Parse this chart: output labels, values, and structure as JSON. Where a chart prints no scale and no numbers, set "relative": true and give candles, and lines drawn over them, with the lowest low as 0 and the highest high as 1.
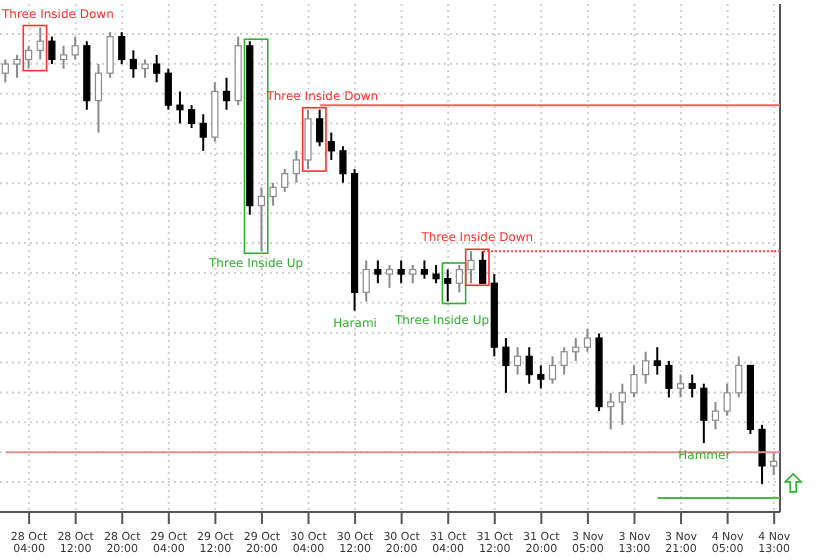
{
  "chart_data": {
    "type": "candlestick",
    "relative": true,
    "categories": [
      null,
      null,
      "28 Oct 04:00",
      null,
      null,
      null,
      "28 Oct 12:00",
      null,
      null,
      null,
      "28 Oct 20:00",
      null,
      null,
      null,
      "29 Oct 04:00",
      null,
      null,
      null,
      "29 Oct 12:00",
      null,
      null,
      null,
      "29 Oct 20:00",
      null,
      null,
      null,
      "30 Oct 04:00",
      null,
      null,
      null,
      "30 Oct 12:00",
      null,
      null,
      null,
      "30 Oct 20:00",
      null,
      null,
      null,
      "31 Oct 04:00",
      null,
      null,
      null,
      "31 Oct 12:00",
      null,
      null,
      null,
      "31 Oct 20:00",
      null,
      null,
      null,
      "3 Nov 05:00",
      null,
      null,
      null,
      "3 Nov 13:00",
      null,
      null,
      null,
      "3 Nov 21:00",
      null,
      null,
      null,
      "4 Nov 05:00",
      null,
      null,
      null,
      "4 Nov 13:00"
    ],
    "ohlc": [
      [
        0.9,
        0.93,
        0.88,
        0.92
      ],
      [
        0.92,
        0.94,
        0.89,
        0.93
      ],
      [
        0.93,
        0.96,
        0.91,
        0.95
      ],
      [
        0.95,
        1.0,
        0.93,
        0.97
      ],
      [
        0.97,
        0.98,
        0.92,
        0.93
      ],
      [
        0.93,
        0.96,
        0.91,
        0.94
      ],
      [
        0.94,
        0.98,
        0.93,
        0.96
      ],
      [
        0.96,
        0.97,
        0.82,
        0.84
      ],
      [
        0.84,
        0.92,
        0.77,
        0.9
      ],
      [
        0.9,
        0.99,
        0.89,
        0.98
      ],
      [
        0.98,
        0.99,
        0.92,
        0.93
      ],
      [
        0.93,
        0.95,
        0.89,
        0.91
      ],
      [
        0.91,
        0.93,
        0.89,
        0.92
      ],
      [
        0.92,
        0.94,
        0.88,
        0.9
      ],
      [
        0.9,
        0.91,
        0.82,
        0.83
      ],
      [
        0.83,
        0.86,
        0.79,
        0.82
      ],
      [
        0.82,
        0.83,
        0.78,
        0.79
      ],
      [
        0.79,
        0.81,
        0.73,
        0.76
      ],
      [
        0.76,
        0.88,
        0.75,
        0.86
      ],
      [
        0.86,
        0.89,
        0.82,
        0.84
      ],
      [
        0.84,
        0.98,
        0.83,
        0.96
      ],
      [
        0.96,
        0.97,
        0.59,
        0.61
      ],
      [
        0.61,
        0.65,
        0.51,
        0.63
      ],
      [
        0.63,
        0.66,
        0.61,
        0.65
      ],
      [
        0.65,
        0.69,
        0.64,
        0.68
      ],
      [
        0.68,
        0.73,
        0.66,
        0.71
      ],
      [
        0.71,
        0.82,
        0.69,
        0.8
      ],
      [
        0.8,
        0.82,
        0.74,
        0.75
      ],
      [
        0.75,
        0.77,
        0.71,
        0.73
      ],
      [
        0.73,
        0.74,
        0.66,
        0.68
      ],
      [
        0.68,
        0.69,
        0.38,
        0.42
      ],
      [
        0.42,
        0.49,
        0.4,
        0.47
      ],
      [
        0.47,
        0.49,
        0.44,
        0.46
      ],
      [
        0.46,
        0.48,
        0.43,
        0.47
      ],
      [
        0.47,
        0.49,
        0.44,
        0.46
      ],
      [
        0.46,
        0.48,
        0.44,
        0.47
      ],
      [
        0.47,
        0.49,
        0.45,
        0.46
      ],
      [
        0.46,
        0.48,
        0.44,
        0.45
      ],
      [
        0.45,
        0.47,
        0.4,
        0.44
      ],
      [
        0.44,
        0.48,
        0.42,
        0.47
      ],
      [
        0.47,
        0.51,
        0.44,
        0.49
      ],
      [
        0.49,
        0.51,
        0.44,
        0.44
      ],
      [
        0.44,
        0.46,
        0.28,
        0.3
      ],
      [
        0.3,
        0.32,
        0.2,
        0.26
      ],
      [
        0.26,
        0.3,
        0.24,
        0.28
      ],
      [
        0.28,
        0.3,
        0.22,
        0.24
      ],
      [
        0.24,
        0.26,
        0.21,
        0.23
      ],
      [
        0.23,
        0.28,
        0.22,
        0.26
      ],
      [
        0.26,
        0.3,
        0.24,
        0.29
      ],
      [
        0.29,
        0.32,
        0.27,
        0.3
      ],
      [
        0.3,
        0.34,
        0.29,
        0.32
      ],
      [
        0.32,
        0.33,
        0.16,
        0.17
      ],
      [
        0.17,
        0.2,
        0.12,
        0.18
      ],
      [
        0.18,
        0.22,
        0.13,
        0.2
      ],
      [
        0.2,
        0.26,
        0.19,
        0.24
      ],
      [
        0.24,
        0.29,
        0.22,
        0.27
      ],
      [
        0.27,
        0.3,
        0.24,
        0.26
      ],
      [
        0.26,
        0.27,
        0.19,
        0.21
      ],
      [
        0.21,
        0.24,
        0.19,
        0.22
      ],
      [
        0.22,
        0.24,
        0.19,
        0.21
      ],
      [
        0.21,
        0.22,
        0.09,
        0.14
      ],
      [
        0.14,
        0.18,
        0.12,
        0.16
      ],
      [
        0.16,
        0.22,
        0.15,
        0.2
      ],
      [
        0.2,
        0.28,
        0.19,
        0.26
      ],
      [
        0.26,
        0.26,
        0.11,
        0.12
      ],
      [
        0.12,
        0.13,
        0.0,
        0.04
      ],
      [
        0.04,
        0.07,
        0.02,
        0.05
      ]
    ],
    "ref_lines": [
      {
        "axis": "y",
        "value": 0.83,
        "color": "#ff6060",
        "line_style": "solid"
      },
      {
        "axis": "y",
        "value": 0.51,
        "color": "#ff4040",
        "line_style": "dotted"
      },
      {
        "axis": "y",
        "value": 0.07,
        "color": "#e09090",
        "line_style": "solid"
      },
      {
        "axis": "y",
        "value": -0.03,
        "color": "#40c040",
        "line_style": "solid"
      }
    ],
    "annotations": [
      "Three Inside Down",
      "Three Inside Up",
      "Three Inside Down",
      "Harami",
      "Three Inside Up",
      "Three Inside Down",
      "Hammer"
    ],
    "grid": true
  }
}
